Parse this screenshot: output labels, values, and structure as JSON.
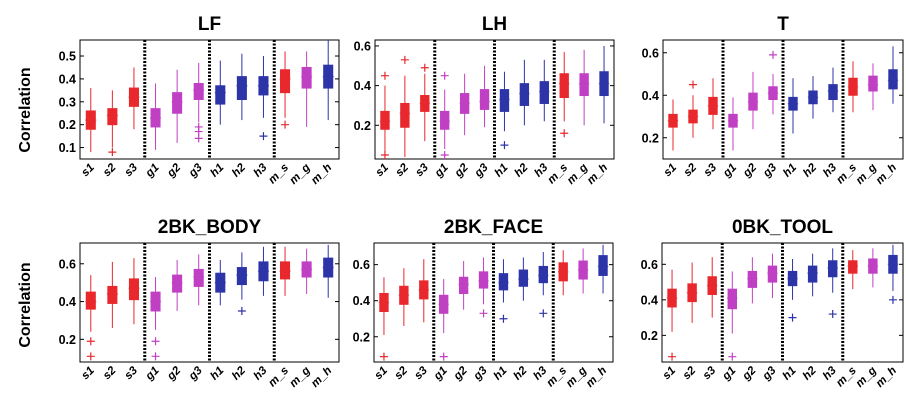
{
  "colors": {
    "s": "#e8282d",
    "g": "#c040c4",
    "h": "#2c34a8",
    "m_s": "#e8282d",
    "m_g": "#c040c4",
    "m_h": "#2c34a8",
    "axis": "#000000",
    "separator": "#000000"
  },
  "y_axis_label": "Correlation",
  "categories": [
    "s1",
    "s2",
    "s3",
    "g1",
    "g2",
    "g3",
    "h1",
    "h2",
    "h3",
    "m_s",
    "m_g",
    "m_h"
  ],
  "chart_data": [
    {
      "type": "box",
      "title": "LF",
      "ylabel": "Correlation",
      "ylim": [
        0.05,
        0.57
      ],
      "yticks": [
        "0.1",
        "0.2",
        "0.3",
        "0.4",
        "0.5"
      ],
      "categories": [
        "s1",
        "s2",
        "s3",
        "g1",
        "g2",
        "g3",
        "h1",
        "h2",
        "h3",
        "m_s",
        "m_g",
        "m_h"
      ],
      "boxes": [
        {
          "min": 0.08,
          "q1": 0.18,
          "median": 0.22,
          "q3": 0.26,
          "max": 0.36,
          "outliers": []
        },
        {
          "min": 0.1,
          "q1": 0.2,
          "median": 0.24,
          "q3": 0.27,
          "max": 0.35,
          "outliers": [
            0.08
          ]
        },
        {
          "min": 0.18,
          "q1": 0.28,
          "median": 0.32,
          "q3": 0.36,
          "max": 0.45,
          "outliers": []
        },
        {
          "min": 0.09,
          "q1": 0.19,
          "median": 0.23,
          "q3": 0.27,
          "max": 0.38,
          "outliers": []
        },
        {
          "min": 0.12,
          "q1": 0.25,
          "median": 0.3,
          "q3": 0.34,
          "max": 0.44,
          "outliers": []
        },
        {
          "min": 0.21,
          "q1": 0.31,
          "median": 0.35,
          "q3": 0.38,
          "max": 0.47,
          "outliers": [
            0.19,
            0.17,
            0.14
          ]
        },
        {
          "min": 0.2,
          "q1": 0.29,
          "median": 0.34,
          "q3": 0.37,
          "max": 0.48,
          "outliers": []
        },
        {
          "min": 0.22,
          "q1": 0.31,
          "median": 0.37,
          "q3": 0.41,
          "max": 0.51,
          "outliers": []
        },
        {
          "min": 0.23,
          "q1": 0.33,
          "median": 0.37,
          "q3": 0.41,
          "max": 0.5,
          "outliers": [
            0.15
          ]
        },
        {
          "min": 0.23,
          "q1": 0.34,
          "median": 0.4,
          "q3": 0.44,
          "max": 0.52,
          "outliers": [
            0.2
          ]
        },
        {
          "min": 0.19,
          "q1": 0.36,
          "median": 0.41,
          "q3": 0.45,
          "max": 0.52,
          "outliers": []
        },
        {
          "min": 0.22,
          "q1": 0.36,
          "median": 0.41,
          "q3": 0.46,
          "max": 0.57,
          "outliers": []
        }
      ]
    },
    {
      "type": "box",
      "title": "LH",
      "ylabel": "",
      "ylim": [
        0.03,
        0.63
      ],
      "yticks": [
        "0.2",
        "0.4",
        "0.6"
      ],
      "categories": [
        "s1",
        "s2",
        "s3",
        "g1",
        "g2",
        "g3",
        "h1",
        "h2",
        "h3",
        "m_s",
        "m_g",
        "m_h"
      ],
      "boxes": [
        {
          "min": 0.06,
          "q1": 0.18,
          "median": 0.22,
          "q3": 0.27,
          "max": 0.4,
          "outliers": [
            0.45,
            0.05
          ]
        },
        {
          "min": 0.04,
          "q1": 0.19,
          "median": 0.26,
          "q3": 0.31,
          "max": 0.45,
          "outliers": [
            0.53
          ]
        },
        {
          "min": 0.12,
          "q1": 0.27,
          "median": 0.31,
          "q3": 0.35,
          "max": 0.46,
          "outliers": [
            0.49
          ]
        },
        {
          "min": 0.08,
          "q1": 0.18,
          "median": 0.22,
          "q3": 0.27,
          "max": 0.38,
          "outliers": [
            0.45,
            0.05
          ]
        },
        {
          "min": 0.15,
          "q1": 0.26,
          "median": 0.31,
          "q3": 0.36,
          "max": 0.46,
          "outliers": []
        },
        {
          "min": 0.19,
          "q1": 0.28,
          "median": 0.32,
          "q3": 0.38,
          "max": 0.5,
          "outliers": []
        },
        {
          "min": 0.17,
          "q1": 0.27,
          "median": 0.33,
          "q3": 0.38,
          "max": 0.47,
          "outliers": [
            0.1
          ]
        },
        {
          "min": 0.2,
          "q1": 0.3,
          "median": 0.36,
          "q3": 0.41,
          "max": 0.53,
          "outliers": []
        },
        {
          "min": 0.22,
          "q1": 0.31,
          "median": 0.37,
          "q3": 0.42,
          "max": 0.53,
          "outliers": []
        },
        {
          "min": 0.22,
          "q1": 0.34,
          "median": 0.41,
          "q3": 0.46,
          "max": 0.57,
          "outliers": [
            0.16
          ]
        },
        {
          "min": 0.2,
          "q1": 0.35,
          "median": 0.41,
          "q3": 0.46,
          "max": 0.58,
          "outliers": []
        },
        {
          "min": 0.21,
          "q1": 0.35,
          "median": 0.41,
          "q3": 0.47,
          "max": 0.6,
          "outliers": []
        }
      ]
    },
    {
      "type": "box",
      "title": "T",
      "ylabel": "",
      "ylim": [
        0.1,
        0.66
      ],
      "yticks": [
        "0.2",
        "0.4",
        "0.6"
      ],
      "categories": [
        "s1",
        "s2",
        "s3",
        "g1",
        "g2",
        "g3",
        "h1",
        "h2",
        "h3",
        "m_s",
        "m_g",
        "m_h"
      ],
      "boxes": [
        {
          "min": 0.14,
          "q1": 0.25,
          "median": 0.28,
          "q3": 0.31,
          "max": 0.38,
          "outliers": []
        },
        {
          "min": 0.2,
          "q1": 0.27,
          "median": 0.3,
          "q3": 0.33,
          "max": 0.4,
          "outliers": [
            0.45
          ]
        },
        {
          "min": 0.24,
          "q1": 0.31,
          "median": 0.35,
          "q3": 0.39,
          "max": 0.48,
          "outliers": []
        },
        {
          "min": 0.14,
          "q1": 0.25,
          "median": 0.28,
          "q3": 0.31,
          "max": 0.39,
          "outliers": []
        },
        {
          "min": 0.24,
          "q1": 0.33,
          "median": 0.37,
          "q3": 0.41,
          "max": 0.51,
          "outliers": []
        },
        {
          "min": 0.31,
          "q1": 0.38,
          "median": 0.41,
          "q3": 0.44,
          "max": 0.5,
          "outliers": [
            0.59
          ]
        },
        {
          "min": 0.22,
          "q1": 0.33,
          "median": 0.36,
          "q3": 0.39,
          "max": 0.48,
          "outliers": []
        },
        {
          "min": 0.29,
          "q1": 0.36,
          "median": 0.39,
          "q3": 0.42,
          "max": 0.49,
          "outliers": []
        },
        {
          "min": 0.32,
          "q1": 0.38,
          "median": 0.42,
          "q3": 0.45,
          "max": 0.53,
          "outliers": []
        },
        {
          "min": 0.32,
          "q1": 0.4,
          "median": 0.44,
          "q3": 0.48,
          "max": 0.56,
          "outliers": []
        },
        {
          "min": 0.33,
          "q1": 0.42,
          "median": 0.45,
          "q3": 0.49,
          "max": 0.55,
          "outliers": []
        },
        {
          "min": 0.36,
          "q1": 0.43,
          "median": 0.47,
          "q3": 0.52,
          "max": 0.63,
          "outliers": []
        }
      ]
    },
    {
      "type": "box",
      "title": "2BK_BODY",
      "ylabel": "Correlation",
      "ylim": [
        0.08,
        0.71
      ],
      "yticks": [
        "0.2",
        "0.4",
        "0.6"
      ],
      "categories": [
        "s1",
        "s2",
        "s3",
        "g1",
        "g2",
        "g3",
        "h1",
        "h2",
        "h3",
        "m_s",
        "m_g",
        "m_h"
      ],
      "boxes": [
        {
          "min": 0.24,
          "q1": 0.36,
          "median": 0.4,
          "q3": 0.45,
          "max": 0.54,
          "outliers": [
            0.19,
            0.11
          ]
        },
        {
          "min": 0.26,
          "q1": 0.39,
          "median": 0.44,
          "q3": 0.48,
          "max": 0.61,
          "outliers": []
        },
        {
          "min": 0.28,
          "q1": 0.41,
          "median": 0.47,
          "q3": 0.52,
          "max": 0.63,
          "outliers": []
        },
        {
          "min": 0.25,
          "q1": 0.35,
          "median": 0.4,
          "q3": 0.45,
          "max": 0.53,
          "outliers": [
            0.19,
            0.11
          ]
        },
        {
          "min": 0.35,
          "q1": 0.45,
          "median": 0.5,
          "q3": 0.54,
          "max": 0.62,
          "outliers": []
        },
        {
          "min": 0.38,
          "q1": 0.48,
          "median": 0.53,
          "q3": 0.57,
          "max": 0.65,
          "outliers": []
        },
        {
          "min": 0.38,
          "q1": 0.45,
          "median": 0.5,
          "q3": 0.55,
          "max": 0.62,
          "outliers": []
        },
        {
          "min": 0.41,
          "q1": 0.49,
          "median": 0.54,
          "q3": 0.58,
          "max": 0.66,
          "outliers": [
            0.35
          ]
        },
        {
          "min": 0.43,
          "q1": 0.51,
          "median": 0.56,
          "q3": 0.61,
          "max": 0.69,
          "outliers": []
        },
        {
          "min": 0.43,
          "q1": 0.52,
          "median": 0.56,
          "q3": 0.61,
          "max": 0.69,
          "outliers": []
        },
        {
          "min": 0.44,
          "q1": 0.53,
          "median": 0.57,
          "q3": 0.61,
          "max": 0.68,
          "outliers": []
        },
        {
          "min": 0.42,
          "q1": 0.53,
          "median": 0.58,
          "q3": 0.63,
          "max": 0.7,
          "outliers": []
        }
      ]
    },
    {
      "type": "box",
      "title": "2BK_FACE",
      "ylabel": "",
      "ylim": [
        0.06,
        0.72
      ],
      "yticks": [
        "0.2",
        "0.4",
        "0.6"
      ],
      "categories": [
        "s1",
        "s2",
        "s3",
        "g1",
        "g2",
        "g3",
        "h1",
        "h2",
        "h3",
        "m_s",
        "m_g",
        "m_h"
      ],
      "boxes": [
        {
          "min": 0.21,
          "q1": 0.34,
          "median": 0.39,
          "q3": 0.44,
          "max": 0.53,
          "outliers": [
            0.09
          ]
        },
        {
          "min": 0.26,
          "q1": 0.38,
          "median": 0.43,
          "q3": 0.48,
          "max": 0.58,
          "outliers": []
        },
        {
          "min": 0.28,
          "q1": 0.41,
          "median": 0.46,
          "q3": 0.51,
          "max": 0.63,
          "outliers": []
        },
        {
          "min": 0.22,
          "q1": 0.33,
          "median": 0.38,
          "q3": 0.43,
          "max": 0.52,
          "outliers": [
            0.09
          ]
        },
        {
          "min": 0.35,
          "q1": 0.44,
          "median": 0.49,
          "q3": 0.53,
          "max": 0.62,
          "outliers": []
        },
        {
          "min": 0.38,
          "q1": 0.47,
          "median": 0.51,
          "q3": 0.56,
          "max": 0.64,
          "outliers": [
            0.33
          ]
        },
        {
          "min": 0.39,
          "q1": 0.46,
          "median": 0.5,
          "q3": 0.55,
          "max": 0.63,
          "outliers": [
            0.3
          ]
        },
        {
          "min": 0.4,
          "q1": 0.48,
          "median": 0.52,
          "q3": 0.57,
          "max": 0.64,
          "outliers": []
        },
        {
          "min": 0.43,
          "q1": 0.5,
          "median": 0.54,
          "q3": 0.59,
          "max": 0.67,
          "outliers": [
            0.33
          ]
        },
        {
          "min": 0.43,
          "q1": 0.51,
          "median": 0.56,
          "q3": 0.61,
          "max": 0.68,
          "outliers": []
        },
        {
          "min": 0.44,
          "q1": 0.52,
          "median": 0.57,
          "q3": 0.62,
          "max": 0.69,
          "outliers": []
        },
        {
          "min": 0.44,
          "q1": 0.54,
          "median": 0.59,
          "q3": 0.65,
          "max": 0.71,
          "outliers": []
        }
      ]
    },
    {
      "type": "box",
      "title": "0BK_TOOL",
      "ylabel": "",
      "ylim": [
        0.05,
        0.72
      ],
      "yticks": [
        "0.2",
        "0.4",
        "0.6"
      ],
      "categories": [
        "s1",
        "s2",
        "s3",
        "g1",
        "g2",
        "g3",
        "h1",
        "h2",
        "h3",
        "m_s",
        "m_g",
        "m_h"
      ],
      "boxes": [
        {
          "min": 0.22,
          "q1": 0.36,
          "median": 0.41,
          "q3": 0.46,
          "max": 0.57,
          "outliers": [
            0.08
          ]
        },
        {
          "min": 0.27,
          "q1": 0.39,
          "median": 0.44,
          "q3": 0.49,
          "max": 0.61,
          "outliers": []
        },
        {
          "min": 0.3,
          "q1": 0.43,
          "median": 0.48,
          "q3": 0.53,
          "max": 0.64,
          "outliers": []
        },
        {
          "min": 0.21,
          "q1": 0.35,
          "median": 0.41,
          "q3": 0.46,
          "max": 0.56,
          "outliers": [
            0.08
          ]
        },
        {
          "min": 0.38,
          "q1": 0.47,
          "median": 0.52,
          "q3": 0.56,
          "max": 0.64,
          "outliers": []
        },
        {
          "min": 0.41,
          "q1": 0.5,
          "median": 0.55,
          "q3": 0.59,
          "max": 0.66,
          "outliers": []
        },
        {
          "min": 0.4,
          "q1": 0.48,
          "median": 0.52,
          "q3": 0.56,
          "max": 0.63,
          "outliers": [
            0.3
          ]
        },
        {
          "min": 0.42,
          "q1": 0.5,
          "median": 0.55,
          "q3": 0.59,
          "max": 0.66,
          "outliers": []
        },
        {
          "min": 0.44,
          "q1": 0.53,
          "median": 0.58,
          "q3": 0.62,
          "max": 0.69,
          "outliers": [
            0.32
          ]
        },
        {
          "min": 0.46,
          "q1": 0.55,
          "median": 0.59,
          "q3": 0.62,
          "max": 0.68,
          "outliers": []
        },
        {
          "min": 0.47,
          "q1": 0.55,
          "median": 0.59,
          "q3": 0.63,
          "max": 0.69,
          "outliers": []
        },
        {
          "min": 0.45,
          "q1": 0.55,
          "median": 0.6,
          "q3": 0.65,
          "max": 0.71,
          "outliers": [
            0.4
          ]
        }
      ]
    }
  ]
}
